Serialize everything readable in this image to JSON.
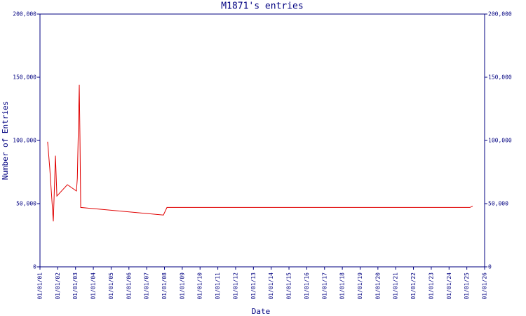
{
  "chart_data": {
    "type": "line",
    "title": "M1871's entries",
    "x_label": "Date",
    "y_label": "Number of Entries",
    "x": [
      2001.43,
      2001.55,
      2001.75,
      2001.87,
      2001.95,
      2002.54,
      2003.05,
      2003.1,
      2003.21,
      2003.25,
      2003.29,
      2007.94,
      2008.14,
      2025.17,
      2025.33
    ],
    "values": [
      99000,
      78000,
      36000,
      88000,
      56000,
      65000,
      60000,
      70000,
      144000,
      100000,
      47000,
      41000,
      47000,
      47000,
      48000
    ],
    "color": "#e00000",
    "xlim": [
      2001,
      2026
    ],
    "xticks": [
      {
        "value": 2001,
        "label": "01/01/01"
      },
      {
        "value": 2002,
        "label": "01/01/02"
      },
      {
        "value": 2003,
        "label": "01/01/03"
      },
      {
        "value": 2004,
        "label": "01/01/04"
      },
      {
        "value": 2005,
        "label": "01/01/05"
      },
      {
        "value": 2006,
        "label": "01/01/06"
      },
      {
        "value": 2007,
        "label": "01/01/07"
      },
      {
        "value": 2008,
        "label": "01/01/08"
      },
      {
        "value": 2009,
        "label": "01/01/09"
      },
      {
        "value": 2010,
        "label": "01/01/10"
      },
      {
        "value": 2011,
        "label": "01/01/11"
      },
      {
        "value": 2012,
        "label": "01/01/12"
      },
      {
        "value": 2013,
        "label": "01/01/13"
      },
      {
        "value": 2014,
        "label": "01/01/14"
      },
      {
        "value": 2015,
        "label": "01/01/15"
      },
      {
        "value": 2016,
        "label": "01/01/16"
      },
      {
        "value": 2017,
        "label": "01/01/17"
      },
      {
        "value": 2018,
        "label": "01/01/18"
      },
      {
        "value": 2019,
        "label": "01/01/19"
      },
      {
        "value": 2020,
        "label": "01/01/20"
      },
      {
        "value": 2021,
        "label": "01/01/21"
      },
      {
        "value": 2022,
        "label": "01/01/22"
      },
      {
        "value": 2023,
        "label": "01/01/23"
      },
      {
        "value": 2024,
        "label": "01/01/24"
      },
      {
        "value": 2025,
        "label": "01/01/25"
      },
      {
        "value": 2026,
        "label": "01/01/26"
      }
    ],
    "ylim": [
      0,
      200000
    ],
    "yticks": [
      0,
      {
        "value": 50000,
        "label": "50,000"
      },
      {
        "value": 100000,
        "label": "100,000"
      },
      {
        "value": 150000,
        "label": "150,000"
      },
      {
        "value": 200000,
        "label": "200,000"
      }
    ],
    "right_axis_mirror": true
  }
}
